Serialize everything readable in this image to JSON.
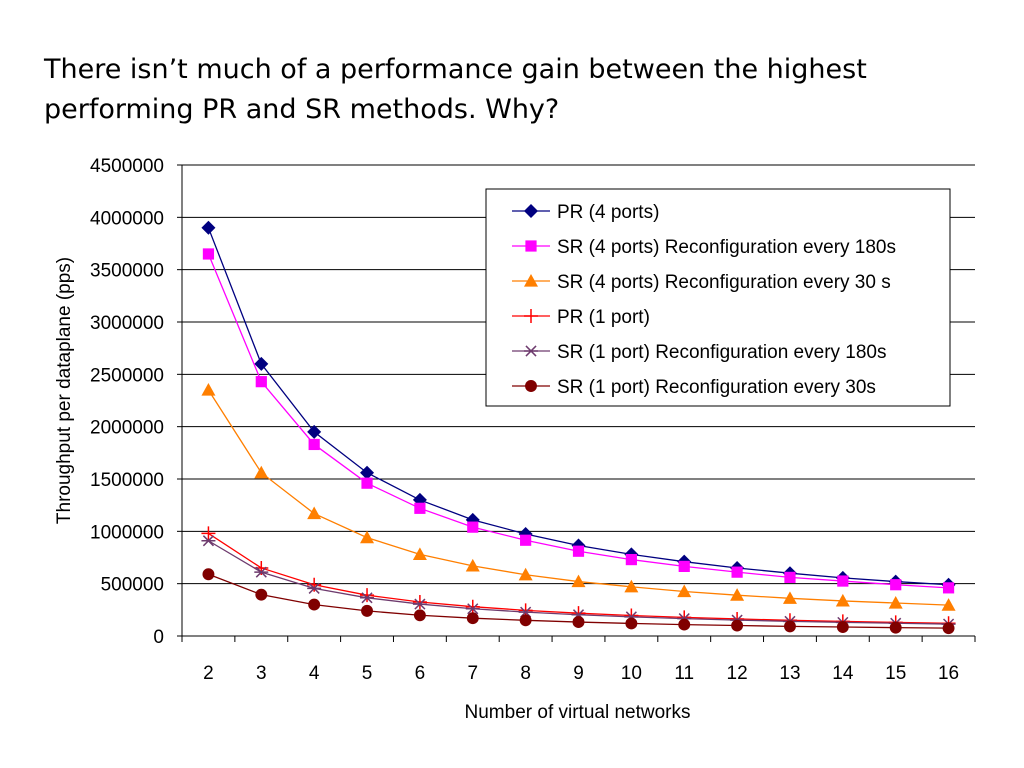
{
  "slide": {
    "title": "There isn’t much of a performance gain between the highest performing PR and SR methods. Why?"
  },
  "chart_data": {
    "type": "line",
    "title": "",
    "xlabel": "Number of virtual networks",
    "ylabel": "Throughput per dataplane (pps)",
    "x": [
      2,
      3,
      4,
      5,
      6,
      7,
      8,
      9,
      10,
      11,
      12,
      13,
      14,
      15,
      16
    ],
    "ylim": [
      0,
      4500000
    ],
    "yticks": [
      0,
      500000,
      1000000,
      1500000,
      2000000,
      2500000,
      3000000,
      3500000,
      4000000,
      4500000
    ],
    "grid": "horizontal",
    "legend_position": "top-right",
    "series": [
      {
        "name": "PR (4 ports)",
        "color": "#000080",
        "marker": "diamond",
        "values": [
          3900000,
          2600000,
          1950000,
          1560000,
          1300000,
          1110000,
          975000,
          865000,
          780000,
          710000,
          650000,
          600000,
          555000,
          520000,
          490000
        ]
      },
      {
        "name": "SR (4 ports) Reconfiguration every 180s",
        "color": "#FF00FF",
        "marker": "square",
        "values": [
          3650000,
          2430000,
          1830000,
          1460000,
          1220000,
          1040000,
          915000,
          810000,
          730000,
          665000,
          610000,
          560000,
          525000,
          490000,
          460000
        ]
      },
      {
        "name": "SR (4 ports) Reconfiguration every 30 s",
        "color": "#FF7F00",
        "marker": "triangle",
        "values": [
          2350000,
          1560000,
          1170000,
          940000,
          780000,
          670000,
          585000,
          520000,
          470000,
          425000,
          390000,
          360000,
          335000,
          315000,
          295000
        ]
      },
      {
        "name": "PR (1 port)",
        "color": "#FF0000",
        "marker": "plus",
        "values": [
          980000,
          650000,
          490000,
          390000,
          325000,
          280000,
          245000,
          218000,
          196000,
          178000,
          163000,
          150000,
          140000,
          130000,
          122000
        ]
      },
      {
        "name": "SR (1 port) Reconfiguration every 180s",
        "color": "#6E3B6E",
        "marker": "asterisk",
        "values": [
          910000,
          610000,
          455000,
          365000,
          305000,
          260000,
          228000,
          203000,
          183000,
          166000,
          152000,
          140000,
          130000,
          122000,
          114000
        ]
      },
      {
        "name": "SR (1 port) Reconfiguration every 30s",
        "color": "#800000",
        "marker": "circle",
        "values": [
          590000,
          395000,
          300000,
          240000,
          198000,
          170000,
          150000,
          133000,
          120000,
          109000,
          100000,
          92000,
          86000,
          80000,
          75000
        ]
      }
    ]
  }
}
